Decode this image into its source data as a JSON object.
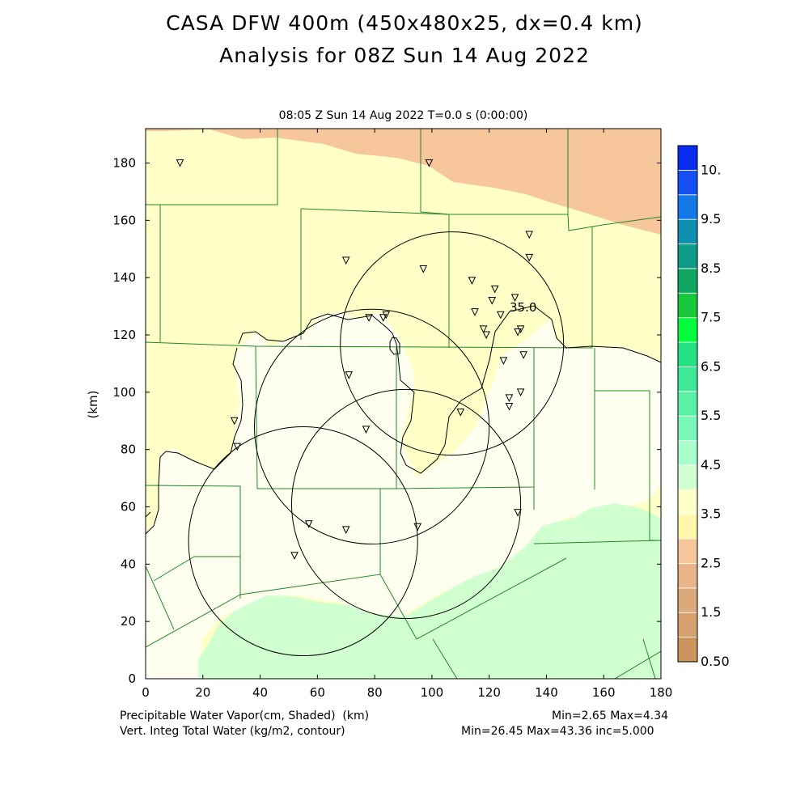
{
  "title_line1": "CASA DFW 400m (450x480x25, dx=0.4 km)",
  "title_line2": "Analysis for 08Z Sun 14 Aug 2022",
  "subtitle": "08:05 Z Sun 14 Aug 2022    T=0.0 s (0:00:00)",
  "footer": {
    "left1": "Precipitable Water Vapor(cm, Shaded)  (km)",
    "left2": "Vert. Integ Total Water (kg/m2, contour)",
    "right1": "Min=2.65 Max=4.34",
    "right2": "Min=26.45 Max=43.36 inc=5.000"
  },
  "chart_data": {
    "type": "heatmap",
    "xlim": [
      0,
      180
    ],
    "ylim": [
      0,
      192
    ],
    "xticks": [
      0,
      20,
      40,
      60,
      80,
      100,
      120,
      140,
      160,
      180
    ],
    "yticks": [
      0,
      20,
      40,
      60,
      80,
      100,
      120,
      140,
      160,
      180
    ],
    "ylabel": "(km)",
    "contour_label": "35.0",
    "colorbar": {
      "labels": [
        "0.50",
        "1.5",
        "2.5",
        "3.5",
        "4.5",
        "5.5",
        "6.5",
        "7.5",
        "8.5",
        "9.5",
        "10."
      ],
      "colors": [
        "#cd9460",
        "#d5a06e",
        "#dca97a",
        "#e8b488",
        "#f7c69a",
        "#fff6a8",
        "#ffffc8",
        "#d0ffd0",
        "#a8ffcc",
        "#78f7b8",
        "#5af0a6",
        "#3ee896",
        "#22e282",
        "#00ff3a",
        "#16c83a",
        "#10a860",
        "#109a88",
        "#0f8fb0",
        "#1478e8",
        "#1450f4",
        "#0a2cf0"
      ]
    },
    "radar_circles": [
      {
        "cx": 107,
        "cy": 117,
        "r": 39
      },
      {
        "cx": 79,
        "cy": 88,
        "r": 41
      },
      {
        "cx": 91,
        "cy": 61,
        "r": 40
      },
      {
        "cx": 55,
        "cy": 48,
        "r": 40
      }
    ],
    "stations": [
      [
        12,
        180
      ],
      [
        99,
        180
      ],
      [
        134,
        155
      ],
      [
        134,
        147
      ],
      [
        70,
        146
      ],
      [
        97,
        143
      ],
      [
        114,
        139
      ],
      [
        122,
        136
      ],
      [
        121,
        132
      ],
      [
        129,
        133
      ],
      [
        115,
        128
      ],
      [
        124,
        127
      ],
      [
        78,
        126
      ],
      [
        84,
        127
      ],
      [
        83,
        126
      ],
      [
        118,
        122
      ],
      [
        131,
        122
      ],
      [
        130,
        121
      ],
      [
        119,
        120
      ],
      [
        132,
        113
      ],
      [
        125,
        111
      ],
      [
        71,
        106
      ],
      [
        131,
        100
      ],
      [
        127,
        98
      ],
      [
        127,
        95
      ],
      [
        110,
        93
      ],
      [
        31,
        90
      ],
      [
        77,
        87
      ],
      [
        32,
        81
      ],
      [
        130,
        58
      ],
      [
        57,
        54
      ],
      [
        70,
        52
      ],
      [
        95,
        53
      ],
      [
        52,
        43
      ]
    ]
  }
}
